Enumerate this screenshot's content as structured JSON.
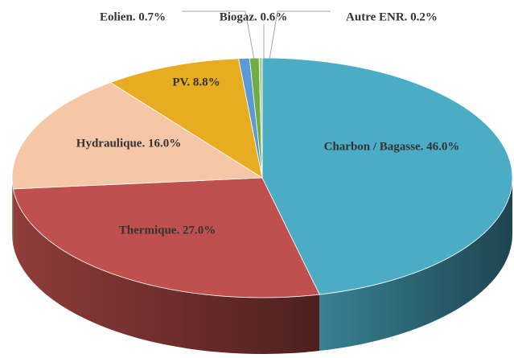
{
  "chart_data": {
    "type": "pie3d",
    "categories": [
      "Charbon / Bagasse. 46.0%",
      "Thermique. 27.0%",
      "Hydraulique. 16.0%",
      "PV. 8.8%",
      "Eolien. 0.7%",
      "Biogaz. 0.6%",
      "Autre ENR. 0.2%"
    ],
    "values": [
      46.0,
      27.0,
      16.0,
      8.8,
      0.7,
      0.6,
      0.2
    ],
    "colors": [
      "#4bacc6",
      "#c0504d",
      "#f6c7a6",
      "#e8ac21",
      "#5b9bd5",
      "#70ad47",
      "#a9d18e"
    ]
  }
}
